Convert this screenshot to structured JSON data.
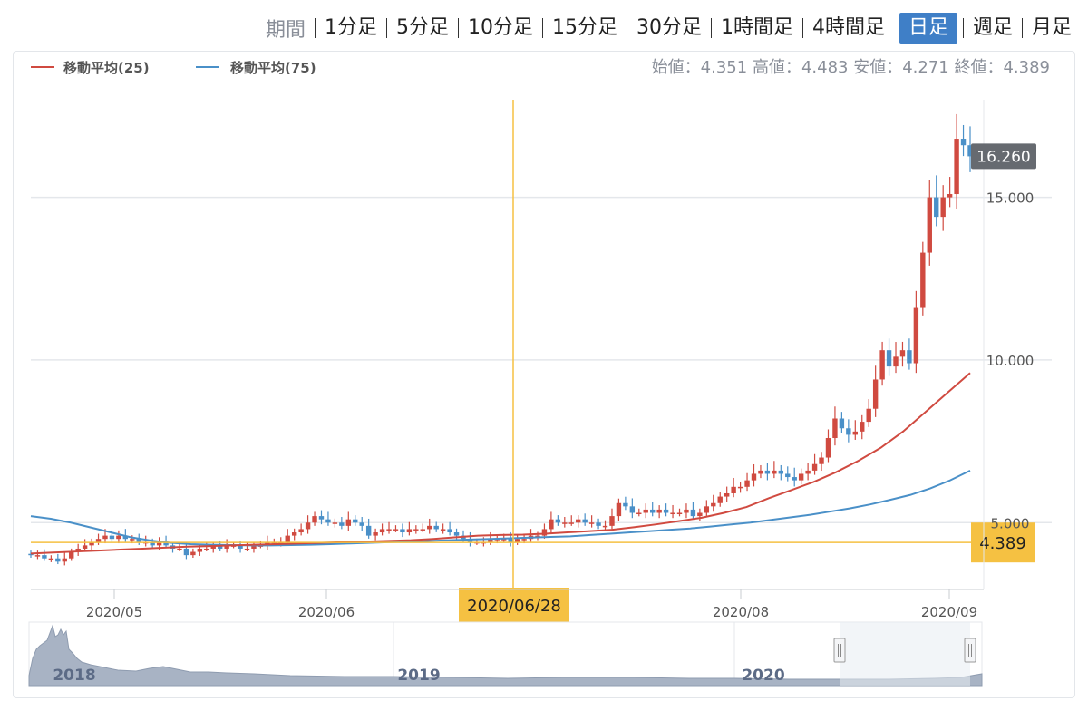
{
  "period_bar": {
    "label": "期間",
    "items": [
      "1分足",
      "5分足",
      "10分足",
      "15分足",
      "30分足",
      "1時間足",
      "4時間足",
      "日足",
      "週足",
      "月足"
    ],
    "active": "日足"
  },
  "ohlc_readout": {
    "open_label": "始値：",
    "open": "4.351",
    "high_label": "高値：",
    "high": "4.483",
    "low_label": "安値：",
    "low": "4.271",
    "close_label": "終値：",
    "close": "4.389"
  },
  "chart_data": {
    "type": "candlestick",
    "legend": [
      {
        "name": "移動平均(25)",
        "color": "#d04a40"
      },
      {
        "name": "移動平均(75)",
        "color": "#4a90c8"
      }
    ],
    "colors": {
      "up": "#d04a40",
      "down": "#4a90c8",
      "crosshair": "#f5c142",
      "grid": "#e4e7eb"
    },
    "ylim": [
      3.0,
      18.0
    ],
    "y_ticks": [
      "15.000",
      "10.000",
      "5.000"
    ],
    "x_ticks": [
      "2020/05",
      "2020/06",
      "2020/08",
      "2020/09"
    ],
    "last_price_label": "16.260",
    "crosshair_price_label": "4.389",
    "crosshair_date_label": "2020/06/28",
    "navigator": {
      "years": [
        "2018",
        "2019",
        "2020"
      ]
    },
    "candles_close": [
      4.0,
      4.0,
      3.9,
      3.9,
      3.8,
      3.9,
      4.1,
      4.2,
      4.3,
      4.4,
      4.5,
      4.6,
      4.5,
      4.6,
      4.5,
      4.5,
      4.4,
      4.4,
      4.3,
      4.4,
      4.3,
      4.2,
      4.2,
      4.0,
      4.1,
      4.2,
      4.2,
      4.3,
      4.2,
      4.3,
      4.3,
      4.2,
      4.2,
      4.3,
      4.3,
      4.4,
      4.4,
      4.4,
      4.6,
      4.7,
      4.8,
      5.0,
      5.2,
      5.1,
      5.0,
      5.0,
      4.9,
      5.1,
      5.0,
      4.9,
      4.6,
      4.7,
      4.8,
      4.8,
      4.8,
      4.7,
      4.8,
      4.8,
      4.8,
      4.9,
      4.8,
      4.8,
      4.7,
      4.6,
      4.5,
      4.4,
      4.4,
      4.4,
      4.5,
      4.5,
      4.5,
      4.4,
      4.5,
      4.5,
      4.6,
      4.6,
      4.8,
      5.1,
      5.0,
      5.0,
      5.0,
      5.1,
      5.0,
      5.0,
      4.9,
      4.9,
      5.2,
      5.6,
      5.5,
      5.3,
      5.3,
      5.4,
      5.3,
      5.4,
      5.3,
      5.3,
      5.3,
      5.4,
      5.2,
      5.3,
      5.5,
      5.6,
      5.8,
      5.9,
      6.1,
      6.1,
      6.3,
      6.5,
      6.6,
      6.5,
      6.6,
      6.5,
      6.4,
      6.3,
      6.5,
      6.6,
      6.8,
      7.0,
      7.6,
      8.2,
      7.9,
      7.7,
      7.8,
      8.1,
      8.5,
      9.4,
      10.3,
      9.8,
      10.1,
      10.3,
      9.9,
      11.6,
      13.3,
      15.0,
      14.4,
      15.0,
      15.1,
      16.8,
      16.6,
      16.26
    ],
    "ma25_values": [
      4.05,
      4.08,
      4.11,
      4.14,
      4.17,
      4.2,
      4.23,
      4.26,
      4.28,
      4.3,
      4.32,
      4.34,
      4.36,
      4.38,
      4.4,
      4.42,
      4.44,
      4.46,
      4.5,
      4.55,
      4.6,
      4.62,
      4.63,
      4.66,
      4.7,
      4.74,
      4.78,
      4.86,
      4.95,
      5.05,
      5.15,
      5.3,
      5.48,
      5.75,
      6.0,
      6.25,
      6.55,
      6.9,
      7.3,
      7.8,
      8.4,
      9.0,
      9.6
    ],
    "ma75_values": [
      5.2,
      5.12,
      5.0,
      4.85,
      4.7,
      4.55,
      4.45,
      4.38,
      4.34,
      4.32,
      4.31,
      4.3,
      4.3,
      4.31,
      4.32,
      4.34,
      4.36,
      4.38,
      4.4,
      4.42,
      4.44,
      4.46,
      4.48,
      4.5,
      4.52,
      4.54,
      4.56,
      4.58,
      4.62,
      4.66,
      4.7,
      4.74,
      4.78,
      4.82,
      4.88,
      4.94,
      5.0,
      5.08,
      5.16,
      5.24,
      5.34,
      5.44,
      5.56,
      5.7,
      5.85,
      6.05,
      6.3,
      6.6
    ]
  }
}
